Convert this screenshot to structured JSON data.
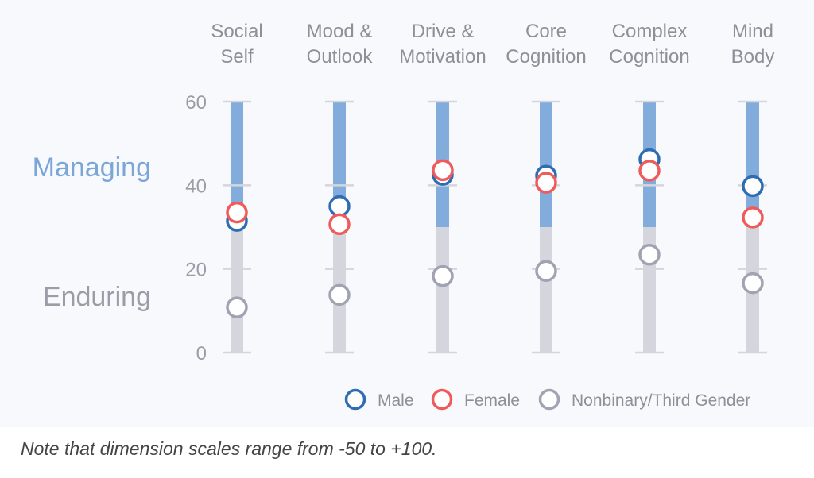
{
  "chart_data": {
    "type": "scatter",
    "categories": [
      [
        "Social",
        "Self"
      ],
      [
        "Mood &",
        "Outlook"
      ],
      [
        "Drive &",
        "Motivation"
      ],
      [
        "Core",
        "Cognition"
      ],
      [
        "Complex",
        "Cognition"
      ],
      [
        "Mind",
        "Body"
      ]
    ],
    "series": [
      {
        "name": "Male",
        "color": "#2e6db4",
        "values": [
          31.5,
          35,
          42.5,
          42.3,
          46.2,
          39.8
        ]
      },
      {
        "name": "Female",
        "color": "#ef5b5b",
        "values": [
          33.5,
          30.7,
          43.6,
          40.6,
          43.5,
          32.3
        ]
      },
      {
        "name": "Nonbinary/Third Gender",
        "color": "#a0a3b1",
        "values": [
          10.8,
          13.8,
          18.3,
          19.5,
          23.4,
          16.6
        ]
      }
    ],
    "ylim": [
      0,
      60
    ],
    "yticks": [
      0,
      20,
      40,
      60
    ],
    "bands": [
      {
        "label": "Enduring",
        "from": 0,
        "to": 30,
        "color": "#d5d6dd",
        "label_color": "#9a9ca8"
      },
      {
        "label": "Managing",
        "from": 30,
        "to": 60,
        "color": "#82acdc",
        "label_color": "#7aa6da"
      }
    ],
    "legend": "bottom-right",
    "grid": false
  },
  "note": "Note that dimension scales range from -50 to +100."
}
